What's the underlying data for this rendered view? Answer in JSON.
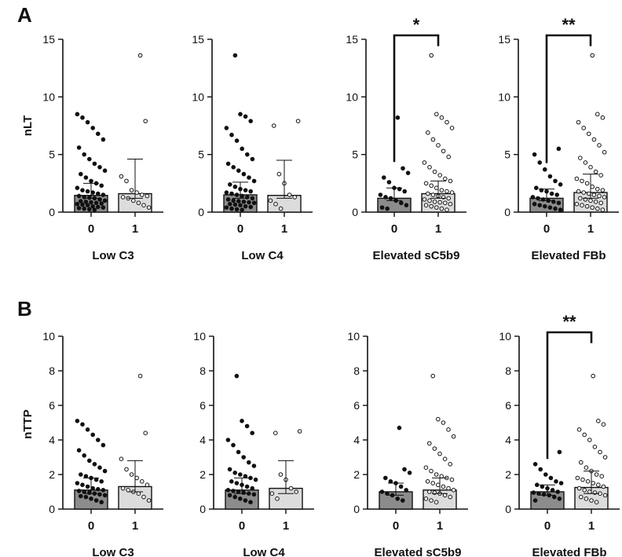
{
  "panels": [
    {
      "label": "A",
      "ylabel": "nLT",
      "ylim": [
        0,
        15
      ],
      "yticks": [
        0,
        5,
        10,
        15
      ],
      "charts": [
        {
          "xlabel": "Low C3",
          "categories": [
            "0",
            "1"
          ],
          "means": [
            1.45,
            1.6
          ],
          "error_upper": [
            2.5,
            4.6
          ],
          "error_lower": [
            1.2,
            1.2
          ],
          "points": [
            [
              8.5,
              8.2,
              7.8,
              7.3,
              6.8,
              6.3,
              5.6,
              5.0,
              4.6,
              4.2,
              3.9,
              3.6,
              3.3,
              3.0,
              2.7,
              2.5,
              2.3,
              2.1,
              1.9,
              1.8,
              1.7,
              1.6,
              1.5,
              1.4,
              1.3,
              1.25,
              1.2,
              1.1,
              1.0,
              0.95,
              0.9,
              0.85,
              0.8,
              0.75,
              0.7,
              0.65,
              0.6,
              0.5,
              0.45,
              0.4,
              0.35,
              0.3,
              0.25,
              0.2
            ],
            [
              13.6,
              7.9,
              3.1,
              2.7,
              1.9,
              1.7,
              1.5,
              1.4,
              1.3,
              1.2,
              1.0,
              0.8,
              0.6,
              0.4
            ]
          ],
          "significance": ""
        },
        {
          "xlabel": "Low C4",
          "categories": [
            "0",
            "1"
          ],
          "means": [
            1.5,
            1.45
          ],
          "error_upper": [
            2.6,
            4.5
          ],
          "error_lower": [
            1.2,
            1.2
          ],
          "points": [
            [
              13.6,
              8.5,
              8.3,
              7.9,
              7.3,
              6.7,
              6.2,
              5.5,
              5.0,
              4.6,
              4.2,
              3.9,
              3.6,
              3.3,
              3.0,
              2.7,
              2.4,
              2.2,
              2.0,
              1.9,
              1.8,
              1.7,
              1.6,
              1.5,
              1.4,
              1.3,
              1.2,
              1.1,
              1.0,
              0.95,
              0.9,
              0.85,
              0.8,
              0.7,
              0.65,
              0.6,
              0.5,
              0.45,
              0.4,
              0.3,
              0.25,
              0.2
            ],
            [
              7.9,
              7.5,
              3.3,
              2.5,
              1.5,
              1.3,
              1.0,
              0.7,
              0.3
            ]
          ],
          "significance": ""
        },
        {
          "xlabel": "Elevated sC5b9",
          "categories": [
            "0",
            "1"
          ],
          "means": [
            1.2,
            1.6
          ],
          "error_upper": [
            2.1,
            2.7
          ],
          "error_lower": [
            1.0,
            1.2
          ],
          "points": [
            [
              8.2,
              3.8,
              3.4,
              3.0,
              2.6,
              2.1,
              2.0,
              1.8,
              1.5,
              1.3,
              1.2,
              1.0,
              0.8,
              0.6,
              0.4,
              0.3
            ],
            [
              13.6,
              8.5,
              8.2,
              7.8,
              7.3,
              6.9,
              6.3,
              5.8,
              5.3,
              4.8,
              4.3,
              3.9,
              3.5,
              3.2,
              2.9,
              2.7,
              2.5,
              2.3,
              2.1,
              1.9,
              1.8,
              1.7,
              1.6,
              1.5,
              1.4,
              1.3,
              1.2,
              1.1,
              1.0,
              0.9,
              0.85,
              0.8,
              0.7,
              0.6,
              0.5,
              0.4,
              0.3,
              0.2
            ]
          ],
          "significance": "*"
        },
        {
          "xlabel": "Elevated FBb",
          "categories": [
            "0",
            "1"
          ],
          "means": [
            1.2,
            1.7
          ],
          "error_upper": [
            2.0,
            3.3
          ],
          "error_lower": [
            1.0,
            1.2
          ],
          "points": [
            [
              5.5,
              5.0,
              4.3,
              3.7,
              3.1,
              2.7,
              2.4,
              2.1,
              1.9,
              1.8,
              1.6,
              1.5,
              1.3,
              1.2,
              1.1,
              1.0,
              0.9,
              0.8,
              0.7,
              0.6,
              0.5,
              0.4,
              0.3,
              0.2
            ],
            [
              13.6,
              8.5,
              8.2,
              7.8,
              7.3,
              6.8,
              6.3,
              5.8,
              5.2,
              4.7,
              4.3,
              3.9,
              3.5,
              3.2,
              2.9,
              2.7,
              2.5,
              2.2,
              2.0,
              1.9,
              1.8,
              1.7,
              1.6,
              1.5,
              1.4,
              1.3,
              1.2,
              1.1,
              1.0,
              0.9,
              0.8,
              0.7,
              0.6,
              0.5,
              0.4,
              0.3,
              0.2
            ]
          ],
          "significance": "**"
        }
      ]
    },
    {
      "label": "B",
      "ylabel": "nTTP",
      "ylim": [
        0,
        10
      ],
      "yticks": [
        0,
        2,
        4,
        6,
        8,
        10
      ],
      "charts": [
        {
          "xlabel": "Low C3",
          "categories": [
            "0",
            "1"
          ],
          "means": [
            1.1,
            1.3
          ],
          "error_upper": [
            1.8,
            2.8
          ],
          "error_lower": [
            0.9,
            1.0
          ],
          "points": [
            [
              5.1,
              4.9,
              4.6,
              4.3,
              4.0,
              3.7,
              3.4,
              3.1,
              2.8,
              2.6,
              2.4,
              2.2,
              2.0,
              1.9,
              1.8,
              1.7,
              1.6,
              1.5,
              1.4,
              1.3,
              1.2,
              1.15,
              1.1,
              1.05,
              1.0,
              0.95,
              0.9,
              0.85,
              0.8,
              0.75,
              0.7,
              0.6,
              0.5,
              0.4
            ],
            [
              7.7,
              4.4,
              2.9,
              2.3,
              2.0,
              1.8,
              1.6,
              1.4,
              1.2,
              1.1,
              1.0,
              0.9,
              0.7,
              0.5
            ]
          ],
          "significance": ""
        },
        {
          "xlabel": "Low C4",
          "categories": [
            "0",
            "1"
          ],
          "means": [
            1.1,
            1.2
          ],
          "error_upper": [
            1.8,
            2.8
          ],
          "error_lower": [
            0.9,
            0.9
          ],
          "points": [
            [
              7.7,
              5.1,
              4.8,
              4.4,
              4.0,
              3.7,
              3.3,
              3.0,
              2.7,
              2.5,
              2.3,
              2.1,
              2.0,
              1.9,
              1.8,
              1.7,
              1.6,
              1.5,
              1.4,
              1.3,
              1.2,
              1.1,
              1.05,
              1.0,
              0.95,
              0.9,
              0.85,
              0.8,
              0.7,
              0.6,
              0.5,
              0.4
            ],
            [
              4.5,
              4.4,
              2.0,
              1.7,
              1.2,
              1.0,
              0.9,
              0.6
            ]
          ],
          "significance": ""
        },
        {
          "xlabel": "Elevated sC5b9",
          "categories": [
            "0",
            "1"
          ],
          "means": [
            1.0,
            1.1
          ],
          "error_upper": [
            1.5,
            1.8
          ],
          "error_lower": [
            0.8,
            0.9
          ],
          "points": [
            [
              4.7,
              2.3,
              2.1,
              1.8,
              1.6,
              1.5,
              1.3,
              1.1,
              1.0,
              0.9,
              0.8,
              0.6,
              0.5
            ],
            [
              7.7,
              5.2,
              5.0,
              4.6,
              4.2,
              3.8,
              3.5,
              3.2,
              2.9,
              2.6,
              2.4,
              2.2,
              2.0,
              1.9,
              1.8,
              1.7,
              1.6,
              1.5,
              1.4,
              1.3,
              1.2,
              1.1,
              1.0,
              0.95,
              0.9,
              0.8,
              0.7,
              0.6,
              0.5,
              0.4
            ]
          ],
          "significance": ""
        },
        {
          "xlabel": "Elevated FBb",
          "categories": [
            "0",
            "1"
          ],
          "means": [
            1.0,
            1.25
          ],
          "error_upper": [
            1.4,
            2.2
          ],
          "error_lower": [
            0.8,
            0.9
          ],
          "points": [
            [
              3.3,
              2.6,
              2.3,
              2.0,
              1.8,
              1.6,
              1.5,
              1.4,
              1.3,
              1.2,
              1.1,
              1.0,
              0.95,
              0.9,
              0.85,
              0.8,
              0.7,
              0.6,
              0.5
            ],
            [
              7.7,
              5.1,
              4.9,
              4.6,
              4.3,
              4.0,
              3.6,
              3.3,
              3.0,
              2.7,
              2.4,
              2.2,
              2.0,
              1.9,
              1.8,
              1.7,
              1.6,
              1.5,
              1.4,
              1.3,
              1.2,
              1.1,
              1.0,
              0.95,
              0.9,
              0.8,
              0.7,
              0.6,
              0.5,
              0.4
            ]
          ],
          "significance": "**"
        }
      ]
    }
  ],
  "colors": {
    "bar_group0": "#8c8c8c",
    "bar_group1": "#dcdcdc",
    "outline": "#111111",
    "point_fill_group0": "#111111",
    "point_fill_group1": "#ffffff"
  },
  "chart_data": [
    {
      "type": "bar",
      "panel": "A",
      "title": "",
      "xlabel": "Low C3",
      "ylabel": "nLT",
      "categories": [
        "0",
        "1"
      ],
      "values": [
        1.45,
        1.6
      ],
      "ylim": [
        0,
        15
      ],
      "significance": ""
    },
    {
      "type": "bar",
      "panel": "A",
      "title": "",
      "xlabel": "Low C4",
      "ylabel": "",
      "categories": [
        "0",
        "1"
      ],
      "values": [
        1.5,
        1.45
      ],
      "ylim": [
        0,
        15
      ],
      "significance": ""
    },
    {
      "type": "bar",
      "panel": "A",
      "title": "",
      "xlabel": "Elevated sC5b9",
      "ylabel": "",
      "categories": [
        "0",
        "1"
      ],
      "values": [
        1.2,
        1.6
      ],
      "ylim": [
        0,
        15
      ],
      "significance": "*"
    },
    {
      "type": "bar",
      "panel": "A",
      "title": "",
      "xlabel": "Elevated FBb",
      "ylabel": "",
      "categories": [
        "0",
        "1"
      ],
      "values": [
        1.2,
        1.7
      ],
      "ylim": [
        0,
        15
      ],
      "significance": "**"
    },
    {
      "type": "bar",
      "panel": "B",
      "title": "",
      "xlabel": "Low C3",
      "ylabel": "nTTP",
      "categories": [
        "0",
        "1"
      ],
      "values": [
        1.1,
        1.3
      ],
      "ylim": [
        0,
        10
      ],
      "significance": ""
    },
    {
      "type": "bar",
      "panel": "B",
      "title": "",
      "xlabel": "Low C4",
      "ylabel": "",
      "categories": [
        "0",
        "1"
      ],
      "values": [
        1.1,
        1.2
      ],
      "ylim": [
        0,
        10
      ],
      "significance": ""
    },
    {
      "type": "bar",
      "panel": "B",
      "title": "",
      "xlabel": "Elevated sC5b9",
      "ylabel": "",
      "categories": [
        "0",
        "1"
      ],
      "values": [
        1.0,
        1.1
      ],
      "ylim": [
        0,
        10
      ],
      "significance": ""
    },
    {
      "type": "bar",
      "panel": "B",
      "title": "",
      "xlabel": "Elevated FBb",
      "ylabel": "",
      "categories": [
        "0",
        "1"
      ],
      "values": [
        1.0,
        1.25
      ],
      "ylim": [
        0,
        10
      ],
      "significance": "**"
    }
  ]
}
